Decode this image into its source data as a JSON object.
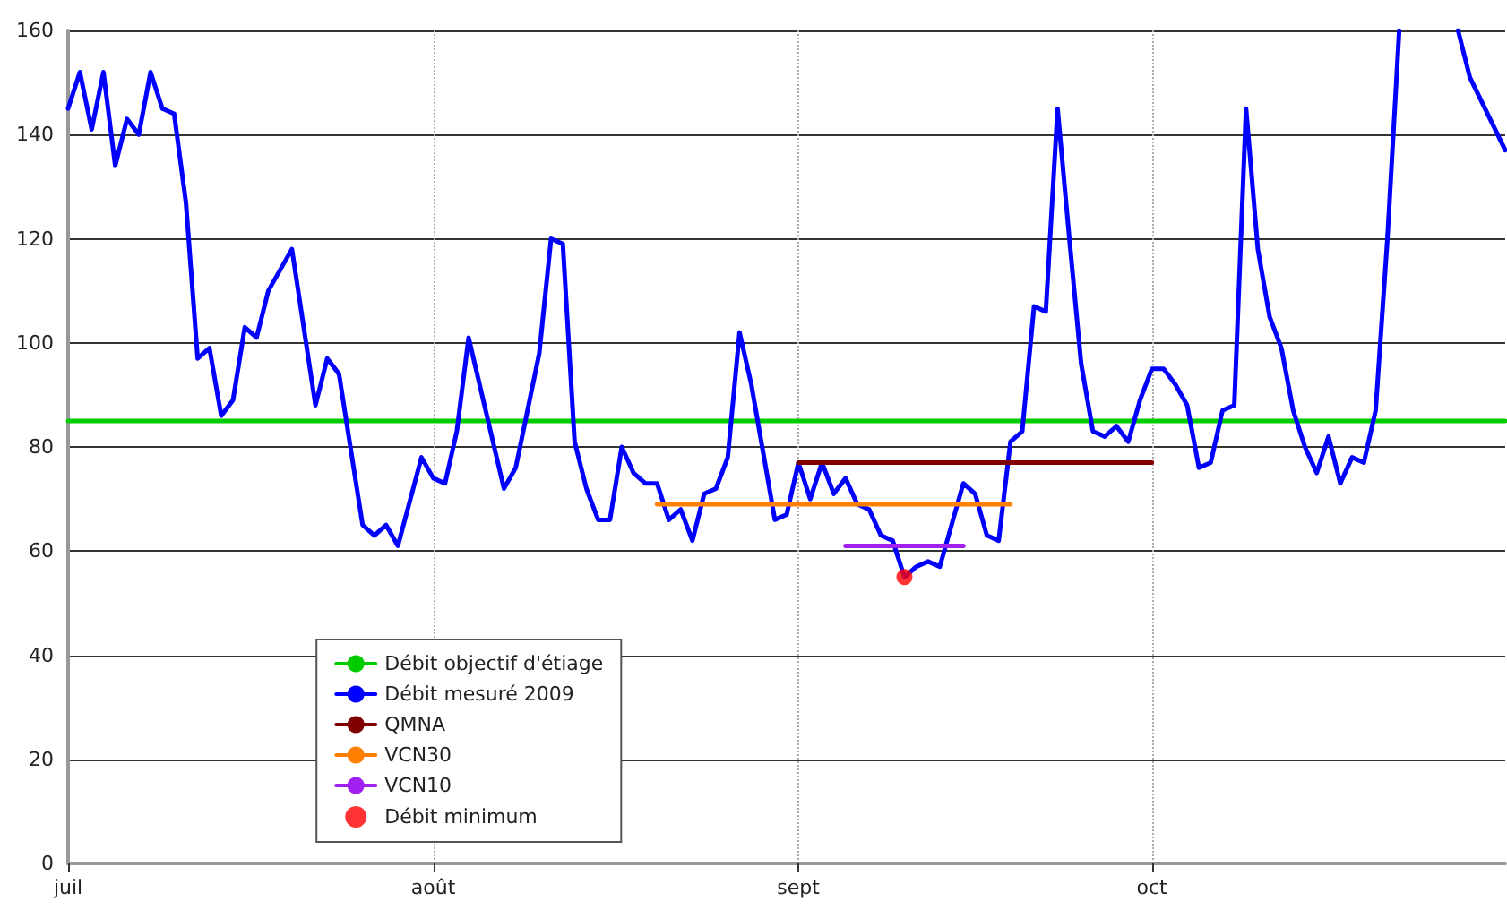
{
  "chart_data": {
    "type": "line",
    "xlim": [
      "--07-01",
      "--10-31"
    ],
    "xticks": [
      {
        "value": "--07-01",
        "label": "juil"
      },
      {
        "value": "--08-01",
        "label": "août"
      },
      {
        "value": "--09-01",
        "label": "sept"
      },
      {
        "value": "--10-01",
        "label": "oct"
      }
    ],
    "ylim": [
      0,
      160
    ],
    "yticks": [
      0,
      20,
      40,
      60,
      80,
      100,
      120,
      140,
      160
    ],
    "grid": true,
    "legend": "bottom left",
    "marker": "none",
    "line_style": "solid",
    "series": [
      {
        "name": "Débit objectif d'étiage",
        "color": "#00cc00",
        "x": [
          "--07-01",
          "--10-31"
        ],
        "values": [
          85,
          85
        ]
      },
      {
        "name": "Débit mesuré 2009",
        "color": "#0000ff",
        "x": [
          "--07-01",
          "--07-02",
          "--07-03",
          "--07-04",
          "--07-05",
          "--07-06",
          "--07-07",
          "--07-08",
          "--07-09",
          "--07-10",
          "--07-11",
          "--07-12",
          "--07-13",
          "--07-14",
          "--07-15",
          "--07-16",
          "--07-17",
          "--07-18",
          "--07-19",
          "--07-20",
          "--07-22",
          "--07-23",
          "--07-24",
          "--07-26",
          "--07-27",
          "--07-28",
          "--07-29",
          "--07-31",
          "--08-01",
          "--08-02",
          "--08-03",
          "--08-04",
          "--08-07",
          "--08-08",
          "--08-10",
          "--08-11",
          "--08-12",
          "--08-13",
          "--08-14",
          "--08-15",
          "--08-16",
          "--08-17",
          "--08-18",
          "--08-19",
          "--08-20",
          "--08-21",
          "--08-22",
          "--08-23",
          "--08-24",
          "--08-25",
          "--08-26",
          "--08-27",
          "--08-28",
          "--08-30",
          "--08-31",
          "--09-01",
          "--09-02",
          "--09-03",
          "--09-04",
          "--09-05",
          "--09-06",
          "--09-07",
          "--09-08",
          "--09-09",
          "--09-10",
          "--09-11",
          "--09-12",
          "--09-13",
          "--09-14",
          "--09-15",
          "--09-16",
          "--09-17",
          "--09-18",
          "--09-19",
          "--09-20",
          "--09-21",
          "--09-22",
          "--09-23",
          "--09-24",
          "--09-25",
          "--09-26",
          "--09-27",
          "--09-28",
          "--09-29",
          "--09-30",
          "--10-01",
          "--10-02",
          "--10-03",
          "--10-04",
          "--10-05",
          "--10-06",
          "--10-07",
          "--10-08",
          "--10-09",
          "--10-10",
          "--10-11",
          "--10-12",
          "--10-13",
          "--10-14",
          "--10-15",
          "--10-16",
          "--10-17",
          "--10-18",
          "--10-19",
          "--10-20",
          "--10-21",
          "--10-22",
          "--10-23",
          "--10-26",
          "--10-27",
          "--10-28",
          "--10-31"
        ],
        "values": [
          145,
          152,
          141,
          152,
          134,
          143,
          140,
          152,
          145,
          144,
          127,
          97,
          99,
          86,
          89,
          103,
          101,
          110,
          114,
          118,
          88,
          97,
          94,
          65,
          63,
          65,
          61,
          78,
          74,
          73,
          83,
          101,
          72,
          76,
          98,
          120,
          119,
          81,
          72,
          66,
          66,
          80,
          75,
          73,
          73,
          66,
          68,
          62,
          71,
          72,
          78,
          102,
          92,
          66,
          67,
          77,
          70,
          77,
          71,
          74,
          69,
          68,
          63,
          62,
          55,
          57,
          58,
          57,
          65,
          73,
          71,
          63,
          62,
          81,
          83,
          107,
          106,
          145,
          120,
          96,
          83,
          82,
          84,
          81,
          89,
          95,
          95,
          92,
          88,
          76,
          77,
          87,
          88,
          145,
          118,
          105,
          99,
          87,
          80,
          75,
          82,
          73,
          78,
          77,
          87,
          120,
          160,
          null,
          null,
          160,
          151,
          137
        ]
      },
      {
        "name": "QMNA",
        "color": "#800000",
        "x": [
          "--09-01",
          "--10-01"
        ],
        "values": [
          77,
          77
        ]
      },
      {
        "name": "VCN30",
        "color": "#ff8000",
        "x": [
          "--08-20",
          "--09-19"
        ],
        "values": [
          69,
          69
        ]
      },
      {
        "name": "VCN10",
        "color": "#a020f0",
        "x": [
          "--09-05",
          "--09-15"
        ],
        "values": [
          61,
          61
        ]
      },
      {
        "name": "Débit minimum",
        "type": "scatter",
        "marker": "circle",
        "color": "#ff0000",
        "x": [
          "--09-10"
        ],
        "values": [
          55
        ]
      }
    ]
  }
}
